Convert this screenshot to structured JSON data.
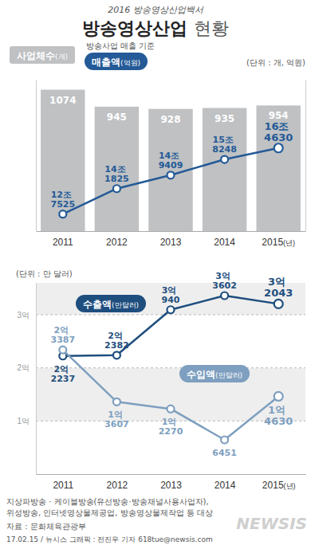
{
  "header": {
    "kicker": "2016 방송영상산업백서",
    "title": "방송영상산업 현황"
  },
  "chart_data": [
    {
      "type": "bar",
      "subtitle": "(단위 : 개, 억원)",
      "annotations": [
        "방송사업 매출 기준"
      ],
      "categories": [
        "2011",
        "2012",
        "2013",
        "2014",
        "2015(년)"
      ],
      "series": [
        {
          "name": "사업체수(개)",
          "type": "bar",
          "color": "#bfc1c3",
          "values": [
            1074,
            945,
            928,
            935,
            954
          ]
        },
        {
          "name": "매출액(억원)",
          "type": "line",
          "axis": "y2",
          "color": "#245a97",
          "marker": "circle",
          "values": [
            127525,
            141825,
            149409,
            158248,
            164630
          ],
          "value_labels": [
            "12조 7525",
            "14조 1825",
            "14조 9409",
            "15조 8248",
            "16조 4630"
          ]
        }
      ],
      "ylim": [
        0,
        1150
      ],
      "y2lim": [
        118000,
        203000
      ],
      "tick_labels": "x",
      "grid": false,
      "data_labels": true
    },
    {
      "type": "line",
      "subtitle": "(단위 : 만 달러)",
      "categories": [
        "2011",
        "2012",
        "2013",
        "2014",
        "2015(년)"
      ],
      "series": [
        {
          "name": "수출액(만달러)",
          "color": "#1e4e7e",
          "marker": "circle",
          "values": [
            22237,
            22382,
            30940,
            33602,
            32043
          ],
          "value_labels": [
            "2억 2237",
            "2억 2382",
            "3억 940",
            "3억 3602",
            "3억 2043"
          ]
        },
        {
          "name": "수입액(만달러)",
          "color": "#7e9fbf",
          "marker": "circle",
          "values": [
            23387,
            13607,
            12270,
            6451,
            14630
          ],
          "value_labels": [
            "2억 3387",
            "1억 3607",
            "1억 2270",
            "6451",
            "1억 4630"
          ]
        }
      ],
      "ylim": [
        0,
        36000
      ],
      "yticks": [
        {
          "value": 10000,
          "label": "1억"
        },
        {
          "value": 20000,
          "label": "2억"
        },
        {
          "value": 30000,
          "label": "3억"
        }
      ],
      "grid": true,
      "data_labels": true
    }
  ],
  "footer": {
    "notes": [
      "지상파방송 · 케이블방송(유선방송·방송채널사용사업자),",
      "위성방송, 인터넷영상물제공업, 방송영상물제작업 등 대상"
    ],
    "source": "자료 : 문화체육관광부",
    "credit": "17.02.15 / 뉴시스 그래픽 : 전진우 기자 618tue@newsis.com",
    "logo": "NEWSIS"
  }
}
